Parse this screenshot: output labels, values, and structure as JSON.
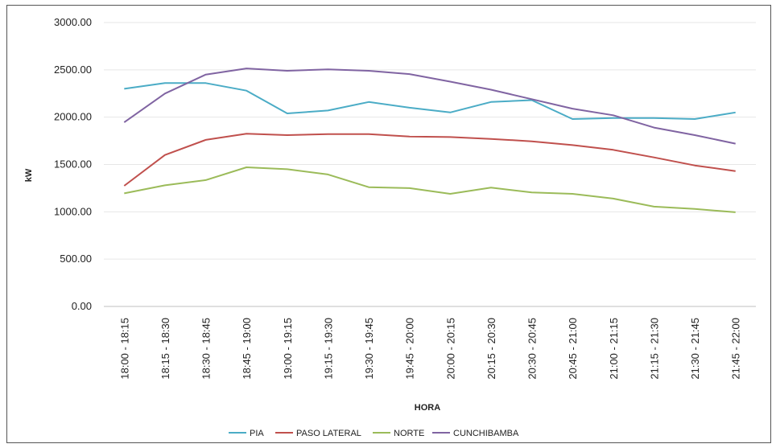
{
  "chart_data": {
    "type": "line",
    "title": "",
    "xlabel": "HORA",
    "ylabel": "kW",
    "ylim": [
      0,
      3000
    ],
    "yticks": [
      "0.00",
      "500.00",
      "1000.00",
      "1500.00",
      "2000.00",
      "2500.00",
      "3000.00"
    ],
    "grid": "horizontal",
    "legend_position": "bottom",
    "categories": [
      "18:00 - 18:15",
      "18:15 - 18:30",
      "18:30 - 18:45",
      "18:45 - 19:00",
      "19:00 - 19:15",
      "19:15 - 19:30",
      "19:30 - 19:45",
      "19:45 - 20:00",
      "20:00 - 20:15",
      "20:15 - 20:30",
      "20:30 - 20:45",
      "20:45 - 21:00",
      "21:00 - 21:15",
      "21:15 - 21:30",
      "21:30 - 21:45",
      "21:45 - 22:00"
    ],
    "series": [
      {
        "name": "PIA",
        "color": "#4BACC6",
        "values": [
          2300,
          2360,
          2360,
          2280,
          2040,
          2070,
          2160,
          2100,
          2050,
          2160,
          2180,
          1980,
          1990,
          1990,
          1980,
          2050
        ]
      },
      {
        "name": "PASO LATERAL",
        "color": "#C0504D",
        "values": [
          1275,
          1600,
          1760,
          1825,
          1810,
          1820,
          1820,
          1795,
          1790,
          1770,
          1745,
          1705,
          1655,
          1575,
          1490,
          1430
        ]
      },
      {
        "name": "NORTE",
        "color": "#9BBB59",
        "values": [
          1195,
          1280,
          1335,
          1470,
          1450,
          1395,
          1260,
          1250,
          1190,
          1255,
          1205,
          1190,
          1140,
          1055,
          1030,
          995
        ]
      },
      {
        "name": "CUNCHIBAMBA",
        "color": "#8064A2",
        "values": [
          1945,
          2250,
          2450,
          2515,
          2490,
          2505,
          2490,
          2455,
          2375,
          2290,
          2190,
          2090,
          2020,
          1890,
          1810,
          1720
        ]
      }
    ]
  }
}
